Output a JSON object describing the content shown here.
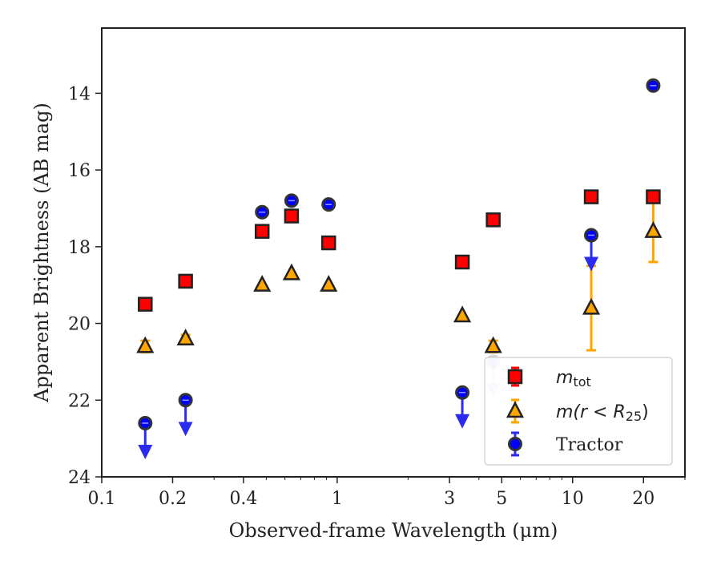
{
  "chart_data": {
    "type": "scatter",
    "title": "",
    "xlabel": "Observed-frame Wavelength (μm)",
    "ylabel": "Apparent Brightness (AB mag)",
    "xscale": "log",
    "xlim": [
      0.1,
      30
    ],
    "ylim": [
      24,
      12.3
    ],
    "y_inverted": true,
    "x_ticks": [
      0.1,
      0.2,
      0.4,
      1,
      3,
      5,
      10,
      20
    ],
    "x_tick_labels": [
      "0.1",
      "0.2",
      "0.4",
      "1",
      "3",
      "5",
      "10",
      "20"
    ],
    "y_ticks": [
      14,
      16,
      18,
      20,
      22,
      24
    ],
    "y_tick_labels": [
      "14",
      "16",
      "18",
      "20",
      "22",
      "24"
    ],
    "grid": false,
    "legend_position": "lower-right",
    "series": [
      {
        "name": "m_tot",
        "legend_label_parts": [
          "m",
          "tot"
        ],
        "marker": "square",
        "color": "#ff0000",
        "edge_color": "#222222",
        "points": [
          {
            "x": 0.153,
            "y": 19.5
          },
          {
            "x": 0.227,
            "y": 18.9
          },
          {
            "x": 0.48,
            "y": 17.6
          },
          {
            "x": 0.64,
            "y": 17.2
          },
          {
            "x": 0.92,
            "y": 17.9
          },
          {
            "x": 3.4,
            "y": 18.4
          },
          {
            "x": 4.6,
            "y": 17.3
          },
          {
            "x": 12.0,
            "y": 16.7
          },
          {
            "x": 22.0,
            "y": 16.7
          }
        ]
      },
      {
        "name": "m(r < R_25)",
        "legend_label_parts": [
          "m(r < R",
          "25",
          ")"
        ],
        "marker": "triangle",
        "color": "#ffa500",
        "edge_color": "#222222",
        "points": [
          {
            "x": 0.153,
            "y": 20.6,
            "yerr_low": 0.15,
            "yerr_high": 0.15
          },
          {
            "x": 0.227,
            "y": 20.4,
            "yerr_low": 0.1,
            "yerr_high": 0.1
          },
          {
            "x": 0.48,
            "y": 19.0
          },
          {
            "x": 0.64,
            "y": 18.7
          },
          {
            "x": 0.92,
            "y": 19.0
          },
          {
            "x": 3.4,
            "y": 19.8
          },
          {
            "x": 4.6,
            "y": 20.6,
            "yerr_low": 0.15,
            "yerr_high": 0.15
          },
          {
            "x": 12.0,
            "y": 19.6,
            "yerr_low": 1.1,
            "yerr_high": 1.1
          },
          {
            "x": 22.0,
            "y": 17.6,
            "yerr_low": 0.8,
            "yerr_high": 0.8
          }
        ]
      },
      {
        "name": "Tractor",
        "legend_label_parts": [
          "Tractor"
        ],
        "marker": "circle",
        "color": "#0000ff",
        "edge_color": "#333333",
        "points": [
          {
            "x": 0.153,
            "y": 22.6,
            "upper_limit": true
          },
          {
            "x": 0.227,
            "y": 22.0,
            "upper_limit": true
          },
          {
            "x": 0.48,
            "y": 17.1
          },
          {
            "x": 0.64,
            "y": 16.8
          },
          {
            "x": 0.92,
            "y": 16.9
          },
          {
            "x": 3.4,
            "y": 21.8,
            "upper_limit": true
          },
          {
            "x": 4.6,
            "y": 21.0,
            "upper_limit": true,
            "faded": true
          },
          {
            "x": 12.0,
            "y": 17.7,
            "upper_limit": true
          },
          {
            "x": 22.0,
            "y": 13.8
          }
        ]
      }
    ]
  }
}
